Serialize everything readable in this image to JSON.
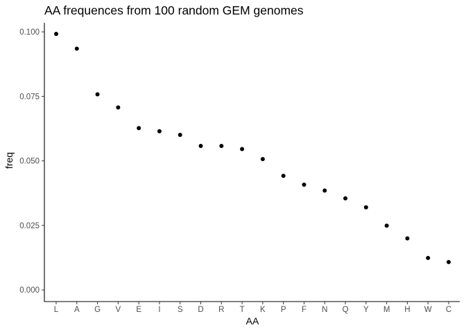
{
  "chart_data": {
    "type": "scatter",
    "title": "AA frequences from 100 random GEM genomes",
    "xlabel": "AA",
    "ylabel": "freq",
    "categories": [
      "L",
      "A",
      "G",
      "V",
      "E",
      "I",
      "S",
      "D",
      "R",
      "T",
      "K",
      "P",
      "F",
      "N",
      "Q",
      "Y",
      "M",
      "H",
      "W",
      "C"
    ],
    "values": [
      0.0992,
      0.0935,
      0.0758,
      0.0707,
      0.0627,
      0.0615,
      0.0601,
      0.0558,
      0.0558,
      0.0546,
      0.0507,
      0.0442,
      0.0408,
      0.0385,
      0.0355,
      0.032,
      0.0249,
      0.02,
      0.0124,
      0.0108
    ],
    "ylim": [
      -0.0045,
      0.1035
    ],
    "y_ticks": [
      0.0,
      0.025,
      0.05,
      0.075,
      0.1
    ],
    "y_tick_labels": [
      "0.000",
      "0.025",
      "0.050",
      "0.075",
      "0.100"
    ],
    "grid": false,
    "legend": "none",
    "point_color": "#000000"
  }
}
